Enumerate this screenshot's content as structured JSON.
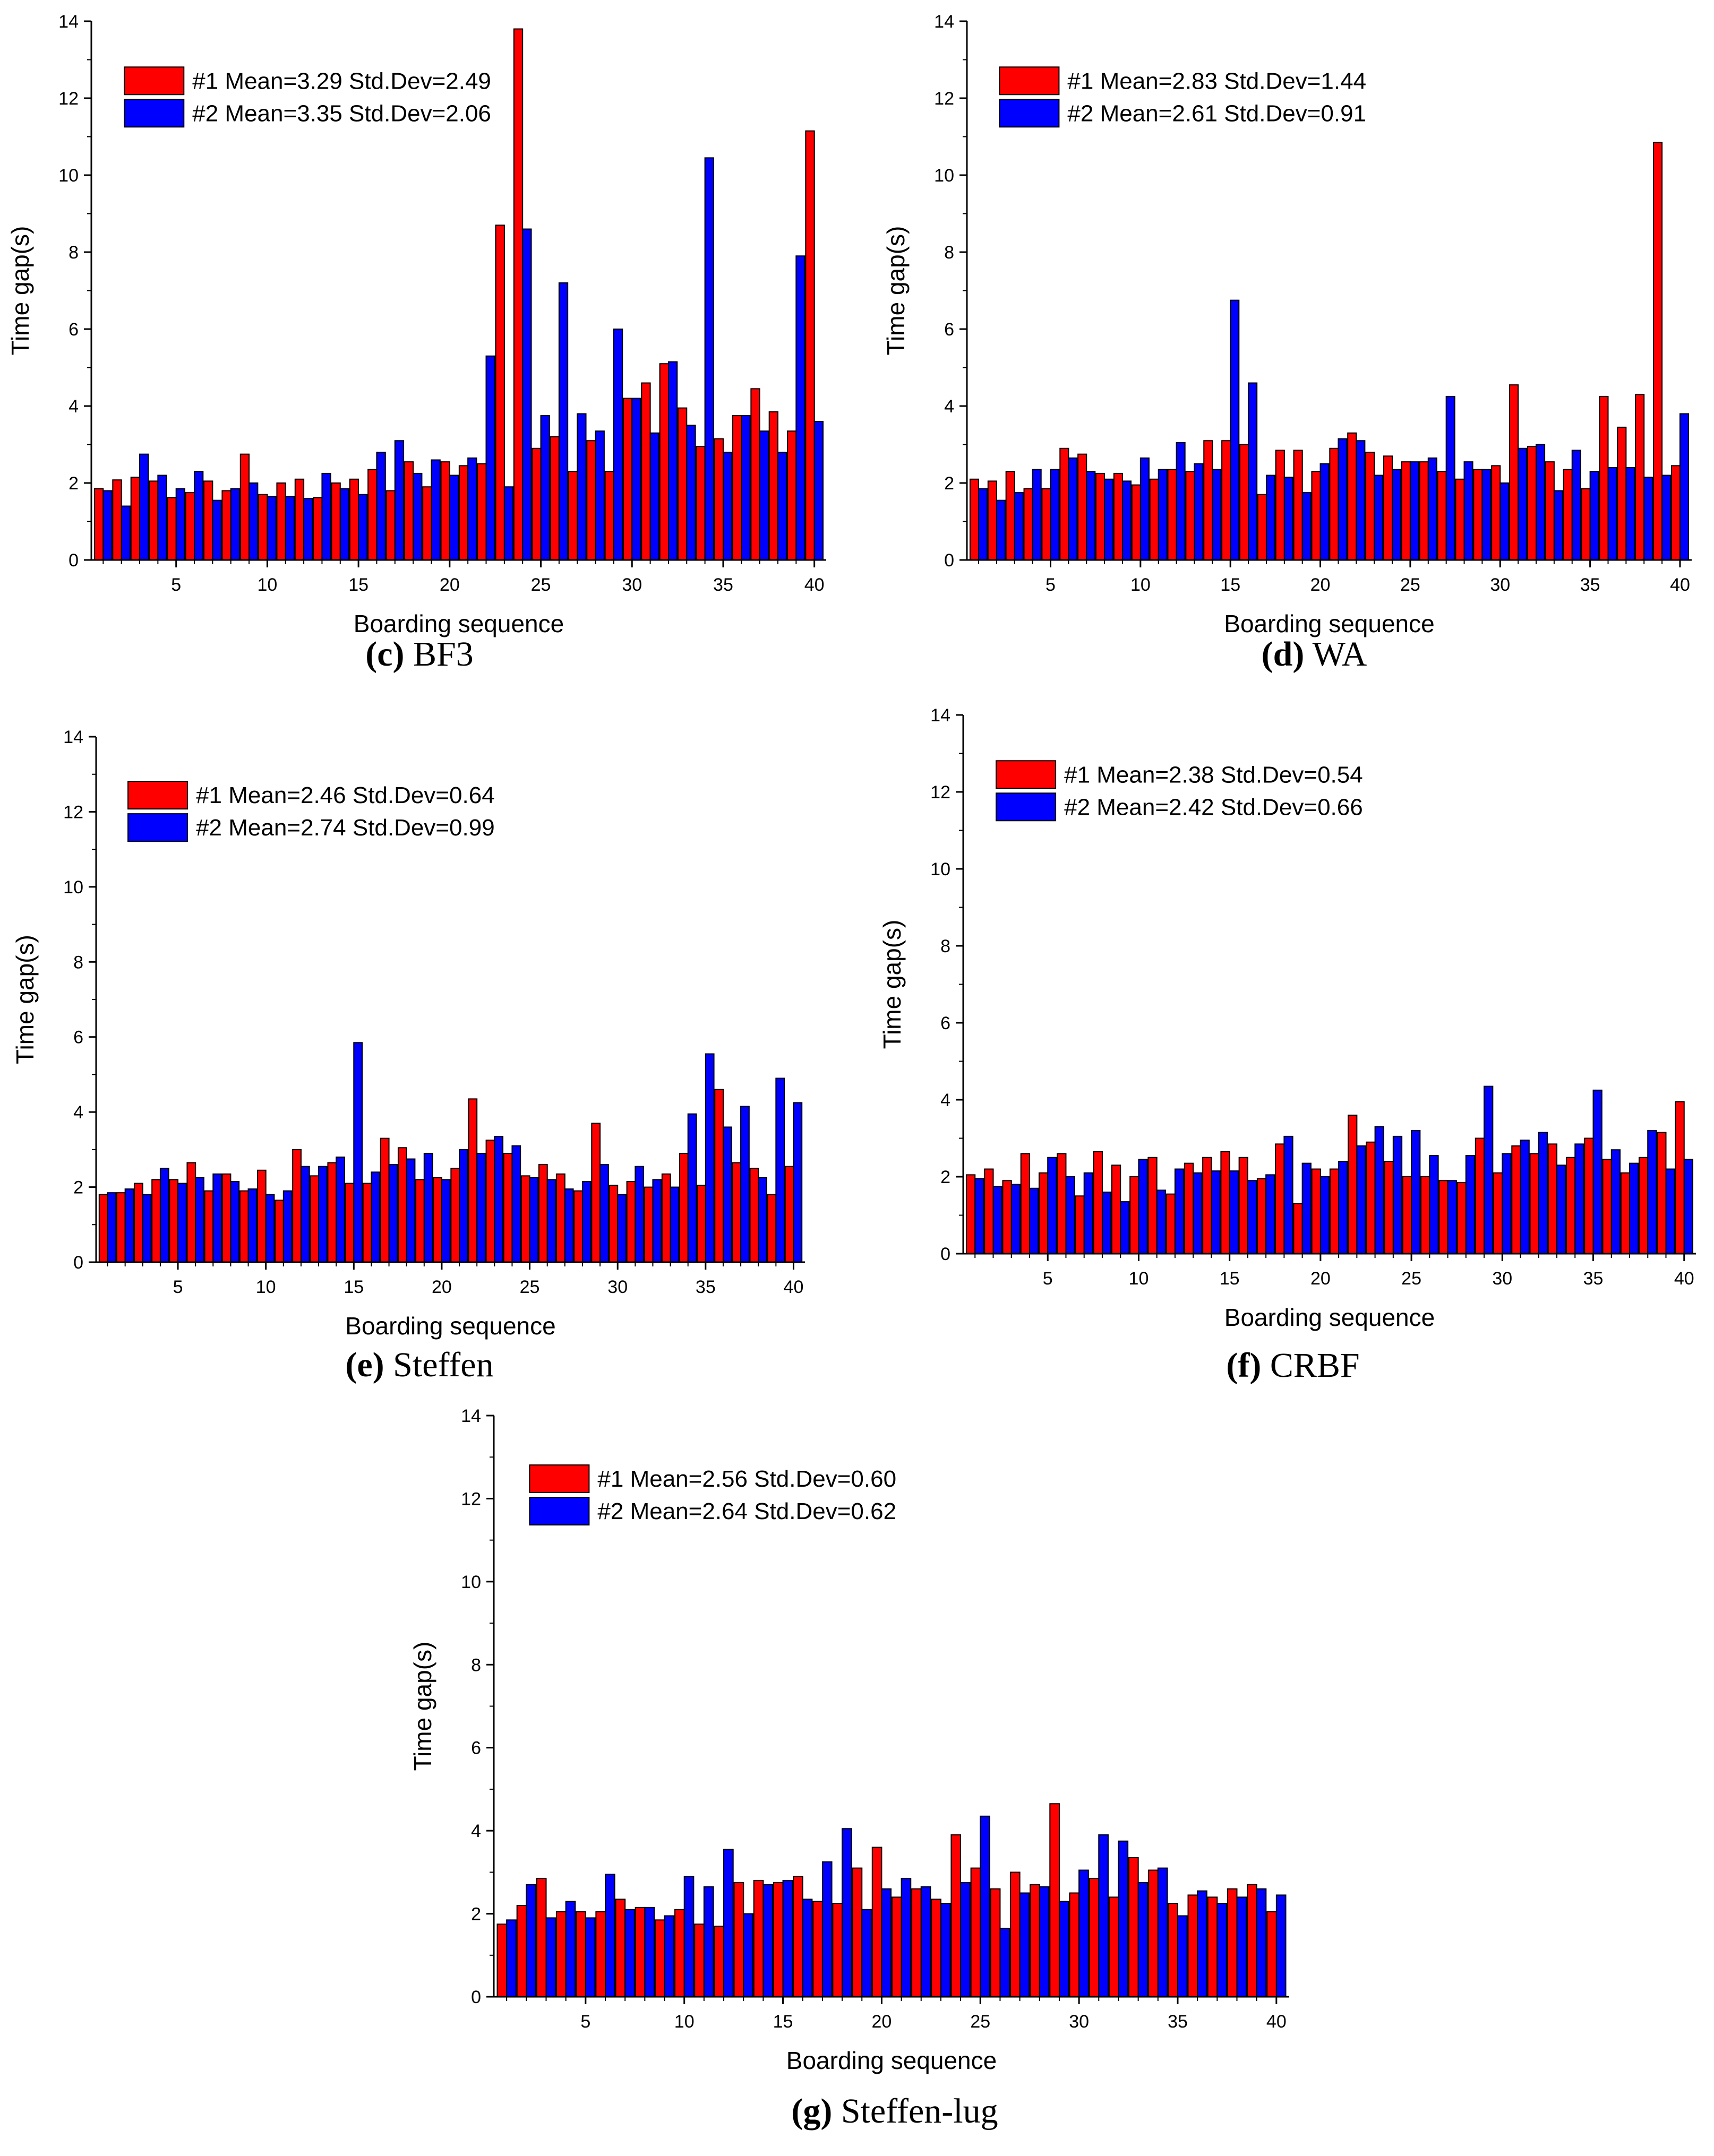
{
  "colors": {
    "series1": "#ff0000",
    "series2": "#0000ff",
    "axis": "#000000"
  },
  "chart_data": [
    {
      "type": "bar",
      "caption": {
        "letter": "(c)",
        "name": "BF3"
      },
      "xlabel": "Boarding sequence",
      "ylabel": "Time gap(s)",
      "ylim": [
        0,
        14
      ],
      "yticks": [
        "0",
        "2",
        "4",
        "6",
        "8",
        "10",
        "12",
        "14"
      ],
      "xticks": [
        "5",
        "10",
        "15",
        "20",
        "25",
        "30",
        "35",
        "40"
      ],
      "categories": [
        1,
        2,
        3,
        4,
        5,
        6,
        7,
        8,
        9,
        10,
        11,
        12,
        13,
        14,
        15,
        16,
        17,
        18,
        19,
        20,
        21,
        22,
        23,
        24,
        25,
        26,
        27,
        28,
        29,
        30,
        31,
        32,
        33,
        34,
        35,
        36,
        37,
        38,
        39,
        40
      ],
      "series": [
        {
          "name": "#1",
          "legend": "#1 Mean=3.29 Std.Dev=2.49",
          "values": [
            1.85,
            2.08,
            2.15,
            2.05,
            1.62,
            1.75,
            2.05,
            1.8,
            2.75,
            1.7,
            2.0,
            2.1,
            1.62,
            2.0,
            2.1,
            2.35,
            1.8,
            2.55,
            1.9,
            2.55,
            2.45,
            2.5,
            8.7,
            13.8,
            2.9,
            3.2,
            2.3,
            3.1,
            2.3,
            4.2,
            4.6,
            5.1,
            3.95,
            2.95,
            3.15,
            3.75,
            4.45,
            3.85,
            3.35,
            11.15
          ]
        },
        {
          "name": "#2",
          "legend": "#2 Mean=3.35 Std.Dev=2.06",
          "values": [
            1.8,
            1.4,
            2.75,
            2.2,
            1.85,
            2.3,
            1.55,
            1.85,
            2.0,
            1.65,
            1.65,
            1.6,
            2.25,
            1.85,
            1.7,
            2.8,
            3.1,
            2.25,
            2.6,
            2.2,
            2.65,
            5.3,
            1.9,
            8.6,
            3.75,
            7.2,
            3.8,
            3.35,
            6.0,
            4.2,
            3.3,
            5.15,
            3.5,
            10.45,
            2.8,
            3.75,
            3.35,
            2.8,
            7.9,
            3.6
          ]
        }
      ]
    },
    {
      "type": "bar",
      "caption": {
        "letter": "(d)",
        "name": "WA"
      },
      "xlabel": "Boarding sequence",
      "ylabel": "Time gap(s)",
      "ylim": [
        0,
        14
      ],
      "yticks": [
        "0",
        "2",
        "4",
        "6",
        "8",
        "10",
        "12",
        "14"
      ],
      "xticks": [
        "5",
        "10",
        "15",
        "20",
        "25",
        "30",
        "35",
        "40"
      ],
      "categories": [
        1,
        2,
        3,
        4,
        5,
        6,
        7,
        8,
        9,
        10,
        11,
        12,
        13,
        14,
        15,
        16,
        17,
        18,
        19,
        20,
        21,
        22,
        23,
        24,
        25,
        26,
        27,
        28,
        29,
        30,
        31,
        32,
        33,
        34,
        35,
        36,
        37,
        38,
        39,
        40
      ],
      "series": [
        {
          "name": "#1",
          "legend": "#1 Mean=2.83 Std.Dev=1.44",
          "values": [
            2.1,
            2.05,
            2.3,
            1.85,
            1.85,
            2.9,
            2.75,
            2.25,
            2.25,
            1.95,
            2.1,
            2.35,
            2.3,
            3.1,
            3.1,
            3.0,
            1.7,
            2.85,
            2.85,
            2.3,
            2.9,
            3.3,
            2.8,
            2.7,
            2.55,
            2.55,
            2.3,
            2.1,
            2.35,
            2.45,
            4.55,
            2.95,
            2.55,
            2.35,
            1.85,
            4.25,
            3.45,
            4.3,
            10.85,
            2.45
          ]
        },
        {
          "name": "#2",
          "legend": "#2 Mean=2.61 Std.Dev=0.91",
          "values": [
            1.85,
            1.55,
            1.75,
            2.35,
            2.35,
            2.65,
            2.3,
            2.1,
            2.05,
            2.65,
            2.35,
            3.05,
            2.5,
            2.35,
            6.75,
            4.6,
            2.2,
            2.15,
            1.75,
            2.5,
            3.15,
            3.1,
            2.2,
            2.35,
            2.55,
            2.65,
            4.25,
            2.55,
            2.35,
            2.0,
            2.9,
            3.0,
            1.8,
            2.85,
            2.3,
            2.4,
            2.4,
            2.15,
            2.2,
            3.8
          ]
        }
      ]
    },
    {
      "type": "bar",
      "caption": {
        "letter": "(e)",
        "name": "Steffen"
      },
      "xlabel": "Boarding sequence",
      "ylabel": "Time gap(s)",
      "ylim": [
        0,
        14
      ],
      "yticks": [
        "0",
        "2",
        "4",
        "6",
        "8",
        "10",
        "12",
        "14"
      ],
      "xticks": [
        "5",
        "10",
        "15",
        "20",
        "25",
        "30",
        "35",
        "40"
      ],
      "categories": [
        1,
        2,
        3,
        4,
        5,
        6,
        7,
        8,
        9,
        10,
        11,
        12,
        13,
        14,
        15,
        16,
        17,
        18,
        19,
        20,
        21,
        22,
        23,
        24,
        25,
        26,
        27,
        28,
        29,
        30,
        31,
        32,
        33,
        34,
        35,
        36,
        37,
        38,
        39,
        40
      ],
      "series": [
        {
          "name": "#1",
          "legend": "#1 Mean=2.46 Std.Dev=0.64",
          "values": [
            1.8,
            1.85,
            2.1,
            2.2,
            2.2,
            2.65,
            1.9,
            2.35,
            1.9,
            2.45,
            1.65,
            3.0,
            2.3,
            2.65,
            2.1,
            2.1,
            3.3,
            3.05,
            2.2,
            2.25,
            2.5,
            4.35,
            3.25,
            2.9,
            2.3,
            2.6,
            2.35,
            1.9,
            3.7,
            2.05,
            2.15,
            2.0,
            2.35,
            2.9,
            2.05,
            4.6,
            2.65,
            2.5,
            1.8,
            2.55
          ]
        },
        {
          "name": "#2",
          "legend": "#2 Mean=2.74 Std.Dev=0.99",
          "values": [
            1.85,
            1.95,
            1.8,
            2.5,
            2.1,
            2.25,
            2.35,
            2.15,
            1.95,
            1.8,
            1.9,
            2.55,
            2.55,
            2.8,
            5.85,
            2.4,
            2.6,
            2.75,
            2.9,
            2.2,
            3.0,
            2.9,
            3.35,
            3.1,
            2.25,
            2.2,
            1.95,
            2.15,
            2.6,
            1.8,
            2.55,
            2.2,
            2.0,
            3.95,
            5.55,
            3.6,
            4.15,
            2.25,
            4.9,
            4.25
          ]
        }
      ]
    },
    {
      "type": "bar",
      "caption": {
        "letter": "(f)",
        "name": "CRBF"
      },
      "xlabel": "Boarding sequence",
      "ylabel": "Time gap(s)",
      "ylim": [
        0,
        14
      ],
      "yticks": [
        "0",
        "2",
        "4",
        "6",
        "8",
        "10",
        "12",
        "14"
      ],
      "xticks": [
        "5",
        "10",
        "15",
        "20",
        "25",
        "30",
        "35",
        "40"
      ],
      "categories": [
        1,
        2,
        3,
        4,
        5,
        6,
        7,
        8,
        9,
        10,
        11,
        12,
        13,
        14,
        15,
        16,
        17,
        18,
        19,
        20,
        21,
        22,
        23,
        24,
        25,
        26,
        27,
        28,
        29,
        30,
        31,
        32,
        33,
        34,
        35,
        36,
        37,
        38,
        39,
        40
      ],
      "series": [
        {
          "name": "#1",
          "legend": "#1 Mean=2.38 Std.Dev=0.54",
          "values": [
            2.05,
            2.2,
            1.9,
            2.6,
            2.1,
            2.6,
            1.5,
            2.65,
            2.3,
            2.0,
            2.5,
            1.55,
            2.35,
            2.5,
            2.65,
            2.5,
            1.95,
            2.85,
            1.3,
            2.2,
            2.2,
            3.6,
            2.9,
            2.4,
            2.0,
            2.0,
            1.9,
            1.85,
            3.0,
            2.1,
            2.8,
            2.6,
            2.85,
            2.5,
            3.0,
            2.45,
            2.1,
            2.5,
            3.15,
            3.95
          ]
        },
        {
          "name": "#2",
          "legend": "#2 Mean=2.42 Std.Dev=0.66",
          "values": [
            1.95,
            1.75,
            1.8,
            1.7,
            2.5,
            2.0,
            2.1,
            1.6,
            1.35,
            2.45,
            1.65,
            2.2,
            2.1,
            2.15,
            2.15,
            1.9,
            2.05,
            3.05,
            2.35,
            2.0,
            2.4,
            2.8,
            3.3,
            3.05,
            3.2,
            2.55,
            1.9,
            2.55,
            4.35,
            2.6,
            2.95,
            3.15,
            2.3,
            2.85,
            4.25,
            2.7,
            2.35,
            3.2,
            2.2,
            2.45
          ]
        }
      ]
    },
    {
      "type": "bar",
      "caption": {
        "letter": "(g)",
        "name": "Steffen-lug"
      },
      "xlabel": "Boarding sequence",
      "ylabel": "Time gap(s)",
      "ylim": [
        0,
        14
      ],
      "yticks": [
        "0",
        "2",
        "4",
        "6",
        "8",
        "10",
        "12",
        "14"
      ],
      "xticks": [
        "5",
        "10",
        "15",
        "20",
        "25",
        "30",
        "35",
        "40"
      ],
      "categories": [
        1,
        2,
        3,
        4,
        5,
        6,
        7,
        8,
        9,
        10,
        11,
        12,
        13,
        14,
        15,
        16,
        17,
        18,
        19,
        20,
        21,
        22,
        23,
        24,
        25,
        26,
        27,
        28,
        29,
        30,
        31,
        32,
        33,
        34,
        35,
        36,
        37,
        38,
        39,
        40
      ],
      "series": [
        {
          "name": "#1",
          "legend": "#1 Mean=2.56 Std.Dev=0.60",
          "values": [
            1.75,
            2.2,
            2.85,
            2.05,
            2.05,
            2.05,
            2.35,
            2.15,
            1.85,
            2.1,
            1.75,
            1.7,
            2.75,
            2.8,
            2.75,
            2.9,
            2.3,
            2.25,
            3.1,
            3.6,
            2.4,
            2.6,
            2.35,
            3.9,
            3.1,
            2.6,
            3.0,
            2.7,
            4.65,
            2.5,
            2.85,
            2.4,
            3.35,
            3.05,
            2.25,
            2.45,
            2.4,
            2.6,
            2.7,
            2.05
          ]
        },
        {
          "name": "#2",
          "legend": "#2 Mean=2.64 Std.Dev=0.62",
          "values": [
            1.85,
            2.7,
            1.9,
            2.3,
            1.9,
            2.95,
            2.1,
            2.15,
            1.95,
            2.9,
            2.65,
            3.55,
            2.0,
            2.7,
            2.8,
            2.35,
            3.25,
            4.05,
            2.1,
            2.6,
            2.85,
            2.65,
            2.25,
            2.75,
            4.35,
            1.65,
            2.5,
            2.65,
            2.3,
            3.05,
            3.9,
            3.75,
            2.75,
            3.1,
            1.95,
            2.55,
            2.25,
            2.4,
            2.6,
            2.45
          ]
        }
      ]
    }
  ]
}
